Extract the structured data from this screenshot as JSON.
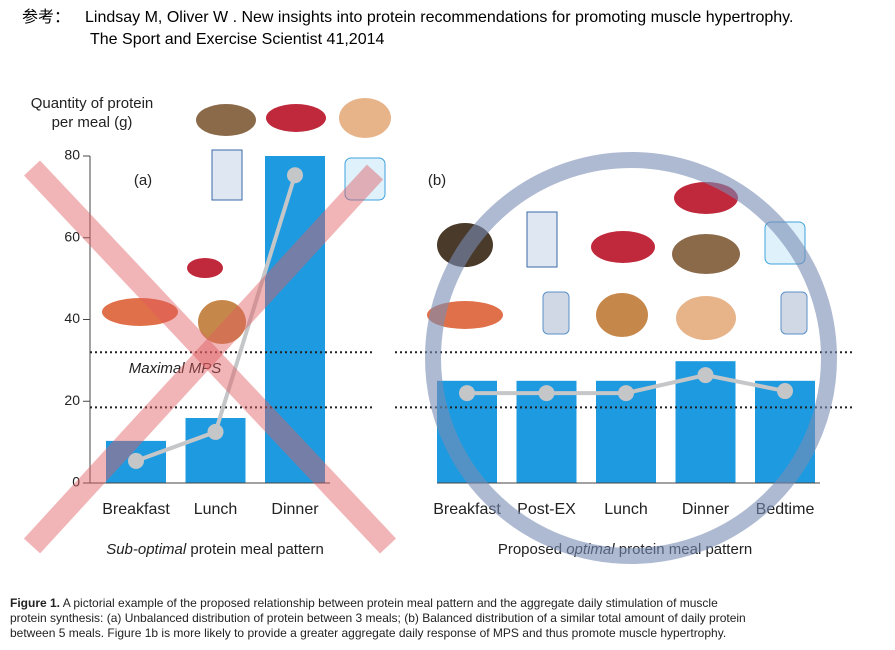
{
  "header": {
    "prefix": "参考：",
    "line1": "Lindsay M, Oliver W . New insights into protein recommendations for promoting muscle hypertrophy.",
    "line2": "The Sport and Exercise Scientist 41,2014"
  },
  "chart_data": [
    {
      "type": "bar",
      "panel_label": "(a)",
      "ylabel": [
        "Quantity of protein",
        "per meal (g)"
      ],
      "categories": [
        "Breakfast",
        "Lunch",
        "Dinner"
      ],
      "values": [
        10.3,
        15.9,
        80
      ],
      "color": "#1e9be0",
      "line_values": [
        5.4,
        12.5,
        75.3
      ],
      "line_color": "#c4c6c8",
      "ylim": [
        0,
        80
      ],
      "yticks": [
        0,
        20,
        40,
        60,
        80
      ],
      "reference_lines": [
        32,
        18.5
      ],
      "annotation": "Maximal MPS",
      "caption": [
        {
          "text": "Sub-optimal",
          "italic": true
        },
        {
          "text": " protein meal pattern",
          "italic": false
        }
      ]
    },
    {
      "type": "bar",
      "panel_label": "(b)",
      "categories": [
        "Breakfast",
        "Post-EX",
        "Lunch",
        "Dinner",
        "Bedtime"
      ],
      "values": [
        25,
        25,
        25,
        29.8,
        25
      ],
      "color": "#1e9be0",
      "line_values": [
        22,
        22,
        22,
        26.4,
        22.5
      ],
      "line_color": "#c4c6c8",
      "ylim": [
        0,
        80
      ],
      "reference_lines": [
        32,
        18.5
      ],
      "caption": [
        {
          "text": "Proposed ",
          "italic": false
        },
        {
          "text": "optimal",
          "italic": true
        },
        {
          "text": " protein meal pattern",
          "italic": false
        }
      ]
    }
  ],
  "figure_caption": {
    "label": "Figure 1.",
    "lines": [
      " A pictorial example of the proposed relationship between protein meal pattern and the aggregate daily stimulation of muscle",
      "protein synthesis: (a) Unbalanced distribution of protein between 3 meals; (b) Balanced distribution of a similar total amount of daily protein",
      "between 5 meals. Figure 1b is more likely to provide a greater aggregate daily response of MPS and thus promote muscle hypertrophy."
    ]
  }
}
